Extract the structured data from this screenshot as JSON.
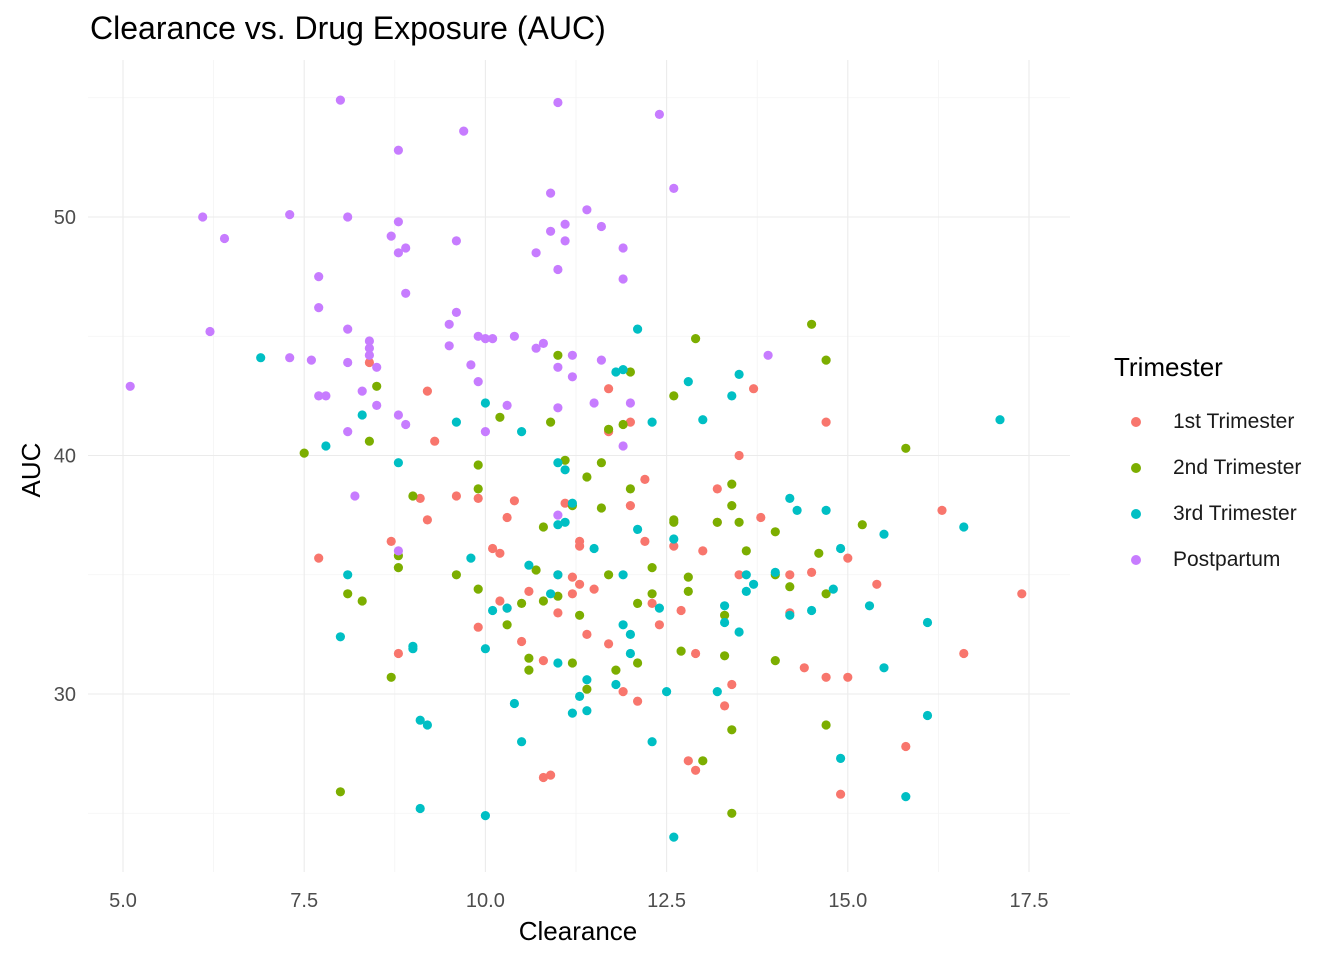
{
  "chart_data": {
    "type": "scatter",
    "title": "Clearance vs. Drug Exposure (AUC)",
    "xlabel": "Clearance",
    "ylabel": "AUC",
    "xlim": [
      4.8,
      18.0
    ],
    "ylim": [
      22.5,
      56.5
    ],
    "x_ticks": [
      5.0,
      7.5,
      10.0,
      12.5,
      15.0,
      17.5
    ],
    "x_tick_labels": [
      "5.0",
      "7.5",
      "10.0",
      "12.5",
      "15.0",
      "17.5"
    ],
    "y_ticks": [
      30,
      40,
      50
    ],
    "y_tick_labels": [
      "30",
      "40",
      "50"
    ],
    "grid": true,
    "legend": {
      "title": "Trimester",
      "position": "right"
    },
    "series": [
      {
        "name": "1st Trimester",
        "color": "#F8766D",
        "points": [
          [
            8.4,
            43.9
          ],
          [
            9.2,
            42.7
          ],
          [
            9.3,
            40.6
          ],
          [
            7.7,
            35.7
          ],
          [
            8.7,
            36.4
          ],
          [
            8.8,
            31.7
          ],
          [
            9.1,
            38.2
          ],
          [
            9.2,
            37.3
          ],
          [
            9.6,
            38.3
          ],
          [
            9.9,
            38.2
          ],
          [
            9.9,
            32.8
          ],
          [
            10.1,
            36.1
          ],
          [
            10.2,
            35.9
          ],
          [
            10.2,
            33.9
          ],
          [
            10.3,
            37.4
          ],
          [
            10.3,
            33.6
          ],
          [
            10.4,
            38.1
          ],
          [
            10.5,
            32.2
          ],
          [
            10.6,
            34.3
          ],
          [
            10.8,
            31.4
          ],
          [
            10.8,
            26.5
          ],
          [
            10.9,
            26.6
          ],
          [
            11.0,
            35.0
          ],
          [
            11.0,
            33.4
          ],
          [
            11.1,
            38.0
          ],
          [
            11.2,
            34.2
          ],
          [
            11.2,
            34.9
          ],
          [
            11.3,
            36.4
          ],
          [
            11.3,
            36.2
          ],
          [
            11.3,
            34.6
          ],
          [
            11.4,
            32.5
          ],
          [
            11.5,
            34.4
          ],
          [
            11.7,
            42.8
          ],
          [
            11.7,
            41.0
          ],
          [
            11.7,
            32.1
          ],
          [
            11.9,
            30.1
          ],
          [
            12.0,
            41.4
          ],
          [
            12.0,
            37.9
          ],
          [
            12.1,
            29.7
          ],
          [
            12.2,
            39.0
          ],
          [
            12.2,
            36.4
          ],
          [
            12.3,
            33.8
          ],
          [
            12.4,
            32.9
          ],
          [
            12.6,
            36.2
          ],
          [
            12.7,
            33.5
          ],
          [
            12.8,
            27.2
          ],
          [
            12.9,
            26.8
          ],
          [
            12.9,
            31.7
          ],
          [
            13.0,
            36.0
          ],
          [
            13.2,
            38.6
          ],
          [
            13.2,
            37.2
          ],
          [
            13.3,
            29.5
          ],
          [
            13.4,
            30.4
          ],
          [
            13.5,
            40.0
          ],
          [
            13.5,
            35.0
          ],
          [
            13.7,
            42.8
          ],
          [
            13.8,
            37.4
          ],
          [
            14.2,
            35.0
          ],
          [
            14.2,
            33.4
          ],
          [
            14.4,
            31.1
          ],
          [
            14.5,
            35.1
          ],
          [
            14.7,
            30.7
          ],
          [
            14.7,
            41.4
          ],
          [
            14.9,
            25.8
          ],
          [
            15.0,
            35.7
          ],
          [
            15.0,
            30.7
          ],
          [
            15.4,
            34.6
          ],
          [
            15.8,
            27.8
          ],
          [
            16.3,
            37.7
          ],
          [
            16.6,
            31.7
          ],
          [
            17.4,
            34.2
          ]
        ]
      },
      {
        "name": "2nd Trimester",
        "color": "#7CAE00",
        "points": [
          [
            7.5,
            40.1
          ],
          [
            8.0,
            25.9
          ],
          [
            8.1,
            34.2
          ],
          [
            8.3,
            33.9
          ],
          [
            8.4,
            40.6
          ],
          [
            8.5,
            42.9
          ],
          [
            8.7,
            30.7
          ],
          [
            8.8,
            35.3
          ],
          [
            8.8,
            35.8
          ],
          [
            9.0,
            38.3
          ],
          [
            9.6,
            35.0
          ],
          [
            9.9,
            39.6
          ],
          [
            9.9,
            38.6
          ],
          [
            9.9,
            34.4
          ],
          [
            10.2,
            41.6
          ],
          [
            10.3,
            32.9
          ],
          [
            10.5,
            33.8
          ],
          [
            10.6,
            31.0
          ],
          [
            10.6,
            31.5
          ],
          [
            10.7,
            35.2
          ],
          [
            10.8,
            33.9
          ],
          [
            10.8,
            37.0
          ],
          [
            10.9,
            41.4
          ],
          [
            11.0,
            44.2
          ],
          [
            11.0,
            34.1
          ],
          [
            11.1,
            39.8
          ],
          [
            11.2,
            37.9
          ],
          [
            11.2,
            31.3
          ],
          [
            11.3,
            33.3
          ],
          [
            11.4,
            39.1
          ],
          [
            11.4,
            30.2
          ],
          [
            11.6,
            39.7
          ],
          [
            11.6,
            37.8
          ],
          [
            11.7,
            41.1
          ],
          [
            11.7,
            35.0
          ],
          [
            11.8,
            31.0
          ],
          [
            11.9,
            41.3
          ],
          [
            12.0,
            43.5
          ],
          [
            12.0,
            38.6
          ],
          [
            12.1,
            33.8
          ],
          [
            12.1,
            31.3
          ],
          [
            12.3,
            34.2
          ],
          [
            12.3,
            35.3
          ],
          [
            12.6,
            42.5
          ],
          [
            12.6,
            37.2
          ],
          [
            12.6,
            37.3
          ],
          [
            12.7,
            31.8
          ],
          [
            12.8,
            34.9
          ],
          [
            12.8,
            34.3
          ],
          [
            12.9,
            44.9
          ],
          [
            13.0,
            27.2
          ],
          [
            13.2,
            37.2
          ],
          [
            13.3,
            33.3
          ],
          [
            13.3,
            31.6
          ],
          [
            13.4,
            38.8
          ],
          [
            13.4,
            37.9
          ],
          [
            13.4,
            28.5
          ],
          [
            13.4,
            25.0
          ],
          [
            13.5,
            37.2
          ],
          [
            13.6,
            36.0
          ],
          [
            14.0,
            36.8
          ],
          [
            14.0,
            35.0
          ],
          [
            14.0,
            31.4
          ],
          [
            14.2,
            34.5
          ],
          [
            14.5,
            45.5
          ],
          [
            14.6,
            35.9
          ],
          [
            14.7,
            44.0
          ],
          [
            14.7,
            34.2
          ],
          [
            14.7,
            28.7
          ],
          [
            15.2,
            37.1
          ],
          [
            15.8,
            40.3
          ]
        ]
      },
      {
        "name": "3rd Trimester",
        "color": "#00BFC4",
        "points": [
          [
            6.9,
            44.1
          ],
          [
            7.8,
            40.4
          ],
          [
            8.0,
            32.4
          ],
          [
            8.1,
            35.0
          ],
          [
            8.3,
            41.7
          ],
          [
            8.8,
            39.7
          ],
          [
            9.0,
            31.9
          ],
          [
            9.0,
            32.0
          ],
          [
            9.1,
            28.9
          ],
          [
            9.1,
            25.2
          ],
          [
            9.2,
            28.7
          ],
          [
            9.6,
            41.4
          ],
          [
            9.8,
            35.7
          ],
          [
            10.0,
            42.2
          ],
          [
            10.0,
            31.9
          ],
          [
            10.0,
            24.9
          ],
          [
            10.1,
            33.5
          ],
          [
            10.3,
            33.6
          ],
          [
            10.4,
            29.6
          ],
          [
            10.5,
            41.0
          ],
          [
            10.5,
            28.0
          ],
          [
            10.6,
            35.4
          ],
          [
            10.9,
            34.2
          ],
          [
            11.0,
            39.7
          ],
          [
            11.0,
            37.1
          ],
          [
            11.0,
            35.0
          ],
          [
            11.0,
            31.3
          ],
          [
            11.1,
            39.4
          ],
          [
            11.1,
            37.2
          ],
          [
            11.2,
            38.0
          ],
          [
            11.2,
            29.2
          ],
          [
            11.3,
            29.9
          ],
          [
            11.4,
            30.6
          ],
          [
            11.4,
            29.3
          ],
          [
            11.5,
            36.1
          ],
          [
            11.8,
            30.4
          ],
          [
            11.8,
            43.5
          ],
          [
            11.9,
            43.6
          ],
          [
            11.9,
            32.9
          ],
          [
            11.9,
            35.0
          ],
          [
            12.0,
            31.7
          ],
          [
            12.0,
            32.5
          ],
          [
            12.1,
            36.9
          ],
          [
            12.1,
            45.3
          ],
          [
            12.3,
            41.4
          ],
          [
            12.3,
            28.0
          ],
          [
            12.4,
            33.6
          ],
          [
            12.5,
            30.1
          ],
          [
            12.6,
            36.5
          ],
          [
            12.6,
            24.0
          ],
          [
            12.8,
            43.1
          ],
          [
            13.0,
            41.5
          ],
          [
            13.2,
            30.1
          ],
          [
            13.3,
            33.7
          ],
          [
            13.3,
            33.0
          ],
          [
            13.4,
            42.5
          ],
          [
            13.5,
            43.4
          ],
          [
            13.5,
            32.6
          ],
          [
            13.6,
            35.0
          ],
          [
            13.6,
            34.3
          ],
          [
            13.7,
            34.6
          ],
          [
            14.0,
            35.1
          ],
          [
            14.2,
            38.2
          ],
          [
            14.3,
            37.7
          ],
          [
            14.2,
            33.3
          ],
          [
            14.5,
            33.5
          ],
          [
            14.7,
            37.7
          ],
          [
            14.8,
            34.4
          ],
          [
            14.9,
            27.3
          ],
          [
            14.9,
            36.1
          ],
          [
            15.3,
            33.7
          ],
          [
            15.5,
            36.7
          ],
          [
            15.5,
            31.1
          ],
          [
            15.8,
            25.7
          ],
          [
            16.1,
            33.0
          ],
          [
            16.1,
            29.1
          ],
          [
            16.6,
            37.0
          ],
          [
            17.1,
            41.5
          ]
        ]
      },
      {
        "name": "Postpartum",
        "color": "#C77CFF",
        "points": [
          [
            5.1,
            42.9
          ],
          [
            6.1,
            50.0
          ],
          [
            6.2,
            45.2
          ],
          [
            6.4,
            49.1
          ],
          [
            7.3,
            50.1
          ],
          [
            7.3,
            44.1
          ],
          [
            7.6,
            44.0
          ],
          [
            7.7,
            46.2
          ],
          [
            7.7,
            47.5
          ],
          [
            7.7,
            42.5
          ],
          [
            7.8,
            42.5
          ],
          [
            8.0,
            54.9
          ],
          [
            8.1,
            45.3
          ],
          [
            8.1,
            50.0
          ],
          [
            8.1,
            43.9
          ],
          [
            8.1,
            41.0
          ],
          [
            8.2,
            38.3
          ],
          [
            8.3,
            42.7
          ],
          [
            8.4,
            44.2
          ],
          [
            8.4,
            44.5
          ],
          [
            8.4,
            44.8
          ],
          [
            8.5,
            43.7
          ],
          [
            8.5,
            42.1
          ],
          [
            8.7,
            49.2
          ],
          [
            8.8,
            49.8
          ],
          [
            8.8,
            48.5
          ],
          [
            8.8,
            52.8
          ],
          [
            8.8,
            41.7
          ],
          [
            8.9,
            48.7
          ],
          [
            8.9,
            46.8
          ],
          [
            8.9,
            41.3
          ],
          [
            8.8,
            36.0
          ],
          [
            9.5,
            45.5
          ],
          [
            9.5,
            44.6
          ],
          [
            9.6,
            46.0
          ],
          [
            9.6,
            49.0
          ],
          [
            9.7,
            53.6
          ],
          [
            9.8,
            43.8
          ],
          [
            9.9,
            45.0
          ],
          [
            9.9,
            43.1
          ],
          [
            10.0,
            44.9
          ],
          [
            10.0,
            41.0
          ],
          [
            10.1,
            44.9
          ],
          [
            10.3,
            42.1
          ],
          [
            10.4,
            45.0
          ],
          [
            10.7,
            44.5
          ],
          [
            10.7,
            48.5
          ],
          [
            10.8,
            44.7
          ],
          [
            10.9,
            49.4
          ],
          [
            10.9,
            51.0
          ],
          [
            11.0,
            43.7
          ],
          [
            11.0,
            42.0
          ],
          [
            11.0,
            54.8
          ],
          [
            11.0,
            47.8
          ],
          [
            11.1,
            49.0
          ],
          [
            11.1,
            49.7
          ],
          [
            11.2,
            44.2
          ],
          [
            11.2,
            43.3
          ],
          [
            11.4,
            50.3
          ],
          [
            11.5,
            42.2
          ],
          [
            11.6,
            44.0
          ],
          [
            11.6,
            49.6
          ],
          [
            11.9,
            48.7
          ],
          [
            11.9,
            47.4
          ],
          [
            11.9,
            40.4
          ],
          [
            12.0,
            42.2
          ],
          [
            12.4,
            54.3
          ],
          [
            12.6,
            51.2
          ],
          [
            13.9,
            44.2
          ],
          [
            11.0,
            37.5
          ]
        ]
      }
    ]
  }
}
